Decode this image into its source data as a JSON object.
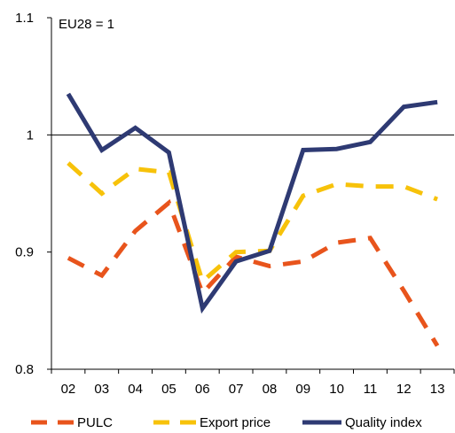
{
  "chart_data": {
    "type": "line",
    "title": "",
    "xlabel": "",
    "ylabel": "",
    "annotation": "EU28 = 1",
    "categories": [
      "02",
      "03",
      "04",
      "05",
      "06",
      "07",
      "08",
      "09",
      "10",
      "11",
      "12",
      "13"
    ],
    "ylim": [
      0.8,
      1.1
    ],
    "yticks": [
      "0.8",
      "0.9",
      "1",
      "1.1"
    ],
    "reference_line": 1.0,
    "legend_position": "bottom",
    "grid": false,
    "series": [
      {
        "name": "PULC",
        "style": "dashed",
        "color": "#e8541c",
        "values": [
          0.895,
          0.88,
          0.918,
          0.942,
          0.865,
          0.896,
          0.888,
          0.892,
          0.908,
          0.912,
          0.867,
          0.82
        ]
      },
      {
        "name": "Export price",
        "style": "dashed",
        "color": "#f7c20a",
        "values": [
          0.976,
          0.95,
          0.971,
          0.968,
          0.875,
          0.9,
          0.901,
          0.948,
          0.958,
          0.956,
          0.956,
          0.945
        ]
      },
      {
        "name": "Quality index",
        "style": "solid",
        "color": "#2e3a73",
        "values": [
          1.035,
          0.987,
          1.006,
          0.985,
          0.852,
          0.892,
          0.901,
          0.987,
          0.988,
          0.994,
          1.024,
          1.028
        ]
      }
    ]
  }
}
